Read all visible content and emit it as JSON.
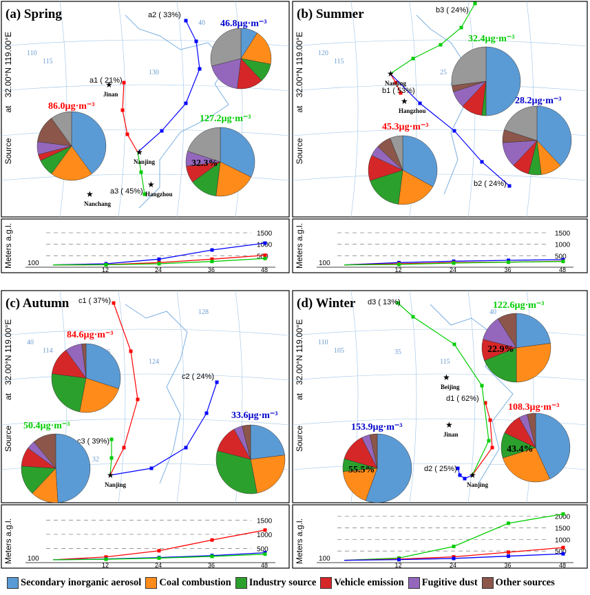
{
  "categories": [
    "Secondary inorganic aerosol",
    "Coal combustion",
    "Industry source",
    "Vehicle emission",
    "Fugitive dust",
    "Other sources"
  ],
  "colors": {
    "sia": "#5b9bd5",
    "coal": "#ff8c1a",
    "industry": "#2ca02c",
    "vehicle": "#d62728",
    "dust": "#9467bd",
    "other": "#8c564b",
    "unknown": "#999999"
  },
  "axis_text": {
    "meters": "Meters a.g.l.",
    "source": "Source",
    "at": "at",
    "coord": "32.00°N  119.00°E"
  },
  "chart_data": [
    {
      "type": "pie",
      "panel": "(a) Spring",
      "pies": [
        {
          "label": "46.8µg·m⁻³",
          "color": "#0000cc",
          "values": [
            9,
            19,
            10,
            14,
            19,
            0,
            29
          ]
        },
        {
          "label": "86.0µg·m⁻³",
          "color": "#ff0000",
          "values": [
            40,
            20,
            8,
            3,
            6,
            13,
            10
          ]
        },
        {
          "label": "127.2µg·m⁻³",
          "color": "#00cc00",
          "pct_label": "32.3%",
          "values": [
            32.3,
            19.7,
            13,
            8,
            7,
            0,
            20
          ]
        }
      ],
      "trajectory_labels": [
        "a1 ( 21%)",
        "a2 ( 33%)",
        "a3 ( 45%)"
      ],
      "city_labels": [
        "Jinan",
        "Nanjing",
        "Hangzhou",
        "Nanchang"
      ],
      "map_labels": [
        "115",
        "110",
        "130",
        "40"
      ],
      "height_chart": {
        "type": "line",
        "x": [
          0,
          12,
          24,
          36,
          48
        ],
        "xticks": [
          "12",
          "24",
          "36",
          "48"
        ],
        "yticks": [
          "1500",
          "1000",
          "500"
        ],
        "base_label": "100",
        "ylim": [
          0,
          1800
        ],
        "series": [
          {
            "color": "#0000ff",
            "values": [
              100,
              150,
              350,
              750,
              1050
            ]
          },
          {
            "color": "#ff0000",
            "values": [
              100,
              110,
              200,
              350,
              520
            ]
          },
          {
            "color": "#00cc00",
            "values": [
              100,
              105,
              150,
              250,
              380
            ]
          }
        ]
      }
    },
    {
      "type": "pie",
      "panel": "(b) Summer",
      "pies": [
        {
          "label": "32.4µg·m⁻³",
          "color": "#00cc00",
          "values": [
            50,
            0,
            2,
            10,
            8,
            3,
            27
          ]
        },
        {
          "label": "45.3µg·m⁻³",
          "color": "#ff0000",
          "values": [
            33,
            19,
            18,
            12,
            5,
            7,
            6
          ]
        },
        {
          "label": "28.2µg·m⁻³",
          "color": "#0000cc",
          "values": [
            38,
            10,
            6,
            8,
            12,
            6,
            20
          ]
        }
      ],
      "trajectory_labels": [
        "b1 ( 53%)",
        "b2 ( 24%)",
        "b3 ( 24%)"
      ],
      "city_labels": [
        "Nanjing",
        "Hangzhou"
      ],
      "map_labels": [
        "115",
        "120",
        "25"
      ],
      "height_chart": {
        "type": "line",
        "x": [
          0,
          12,
          24,
          36,
          48
        ],
        "xticks": [
          "12",
          "24",
          "36",
          "48"
        ],
        "yticks": [
          "1500",
          "1000",
          "500"
        ],
        "base_label": "100",
        "ylim": [
          0,
          1800
        ],
        "series": [
          {
            "color": "#0000ff",
            "values": [
              100,
              200,
              260,
              300,
              330
            ]
          },
          {
            "color": "#ff0000",
            "values": [
              100,
              150,
              200,
              220,
              260
            ]
          },
          {
            "color": "#00cc00",
            "values": [
              100,
              120,
              180,
              220,
              250
            ]
          }
        ]
      }
    },
    {
      "type": "pie",
      "panel": "(c) Autumn",
      "pies": [
        {
          "label": "84.6µg·m⁻³",
          "color": "#ff0000",
          "values": [
            30,
            23,
            24,
            13,
            8,
            2,
            0
          ]
        },
        {
          "label": "50.4µg·m⁻³",
          "color": "#00cc00",
          "values": [
            49,
            13,
            14,
            9,
            4,
            11,
            0
          ]
        },
        {
          "label": "33.6µg·m⁻³",
          "color": "#0000cc",
          "values": [
            23,
            24,
            32,
            13,
            4,
            4,
            0
          ]
        }
      ],
      "trajectory_labels": [
        "c1 ( 37%)",
        "c2 ( 24%)",
        "c3 ( 39%)"
      ],
      "city_labels": [
        "Nanjing"
      ],
      "map_labels": [
        "114",
        "40",
        "124",
        "128",
        "36",
        "34",
        "32"
      ],
      "height_chart": {
        "type": "line",
        "x": [
          0,
          12,
          24,
          36,
          48
        ],
        "xticks": [
          "12",
          "24",
          "36",
          "48"
        ],
        "yticks": [
          "1500",
          "1000",
          "500"
        ],
        "base_label": "100",
        "ylim": [
          0,
          1800
        ],
        "series": [
          {
            "color": "#ff0000",
            "values": [
              100,
              200,
              420,
              800,
              1150
            ]
          },
          {
            "color": "#0000ff",
            "values": [
              100,
              130,
              180,
              250,
              350
            ]
          },
          {
            "color": "#00cc00",
            "values": [
              100,
              120,
              160,
              220,
              300
            ]
          }
        ]
      }
    },
    {
      "type": "pie",
      "panel": "(d) Winter",
      "pies": [
        {
          "label": "122.6µg·m⁻³",
          "color": "#00cc00",
          "pct_label": "22.9%",
          "values": [
            22.9,
            27,
            19,
            10,
            12,
            9,
            0
          ]
        },
        {
          "label": "108.3µg·m⁻³",
          "color": "#ff0000",
          "pct_label": "43.4%",
          "values": [
            43.4,
            27,
            12,
            10,
            4,
            4,
            0
          ]
        },
        {
          "label": "153.9µg·m⁻³",
          "color": "#0000cc",
          "pct_label": "55.5%",
          "values": [
            55.5,
            18,
            6,
            13,
            4,
            3.5,
            0
          ]
        }
      ],
      "trajectory_labels": [
        "d1 ( 62%)",
        "d2 ( 25%)",
        "d3 ( 13%)"
      ],
      "city_labels": [
        "Beijing",
        "Jinan",
        "Nanjing"
      ],
      "map_labels": [
        "105",
        "110",
        "115",
        "40",
        "35",
        "30"
      ],
      "height_chart": {
        "type": "line",
        "x": [
          0,
          12,
          24,
          36,
          48
        ],
        "xticks": [
          "12",
          "24",
          "36",
          "48"
        ],
        "yticks": [
          "2000",
          "1500",
          "1000",
          "500"
        ],
        "base_label": "100",
        "ylim": [
          0,
          2200
        ],
        "series": [
          {
            "color": "#00cc00",
            "values": [
              100,
              200,
              700,
              1700,
              2100
            ]
          },
          {
            "color": "#ff0000",
            "values": [
              100,
              150,
              250,
              450,
              650
            ]
          },
          {
            "color": "#0000ff",
            "values": [
              100,
              130,
              180,
              280,
              380
            ]
          }
        ]
      }
    }
  ]
}
